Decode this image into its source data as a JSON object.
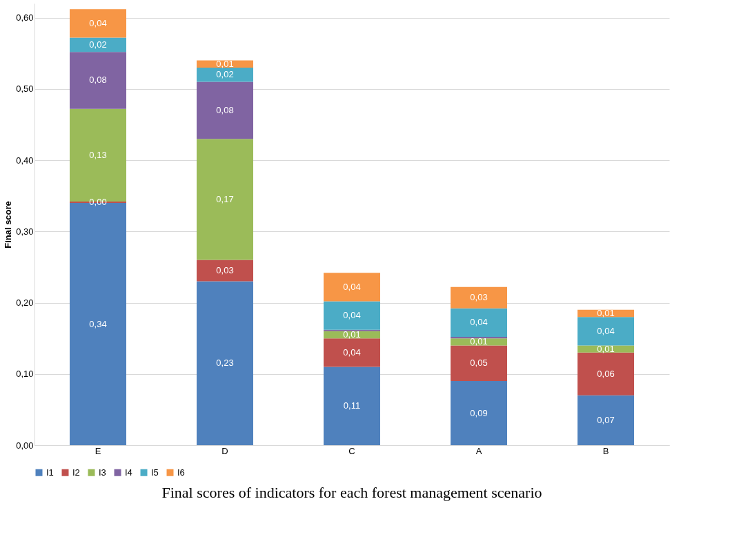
{
  "chart_data": {
    "type": "bar",
    "stacked": true,
    "title": "Final scores of indicators for each forest management scenario",
    "ylabel": "Final score",
    "categories": [
      "E",
      "D",
      "C",
      "A",
      "B"
    ],
    "series": [
      {
        "name": "I1",
        "color": "#4f81bd",
        "values": [
          0.34,
          0.23,
          0.11,
          0.09,
          0.07
        ],
        "value_labels": [
          "0,34",
          "0,23",
          "0,11",
          "0,09",
          "0,07"
        ]
      },
      {
        "name": "I2",
        "color": "#c0504d",
        "values": [
          0.002,
          0.03,
          0.04,
          0.05,
          0.06
        ],
        "value_labels": [
          "0,00",
          "0,03",
          "0,04",
          "0,05",
          "0,06"
        ]
      },
      {
        "name": "I3",
        "color": "#9bbb59",
        "values": [
          0.13,
          0.17,
          0.01,
          0.01,
          0.01
        ],
        "value_labels": [
          "0,13",
          "0,17",
          "0,01",
          "0,01",
          "0,01"
        ]
      },
      {
        "name": "I4",
        "color": "#8064a2",
        "values": [
          0.08,
          0.08,
          0.002,
          0.002,
          0.0
        ],
        "value_labels": [
          "0,08",
          "0,08",
          null,
          null,
          null
        ]
      },
      {
        "name": "I5",
        "color": "#4bacc6",
        "values": [
          0.02,
          0.02,
          0.04,
          0.04,
          0.04
        ],
        "value_labels": [
          "0,02",
          "0,02",
          "0,04",
          "0,04",
          "0,04"
        ]
      },
      {
        "name": "I6",
        "color": "#f79646",
        "values": [
          0.04,
          0.01,
          0.04,
          0.03,
          0.01
        ],
        "value_labels": [
          "0,04",
          "0,01",
          "0,04",
          "0,03",
          "0,01"
        ]
      }
    ],
    "ylim": [
      0,
      0.62
    ],
    "yticks": [
      {
        "value": 0,
        "label": "0,00"
      },
      {
        "value": 0.1,
        "label": "0,10"
      },
      {
        "value": 0.2,
        "label": "0,20"
      },
      {
        "value": 0.3,
        "label": "0,30"
      },
      {
        "value": 0.4,
        "label": "0,40"
      },
      {
        "value": 0.5,
        "label": "0,50"
      },
      {
        "value": 0.6,
        "label": "0,60"
      }
    ],
    "grid": "y",
    "legend": "bottom"
  }
}
